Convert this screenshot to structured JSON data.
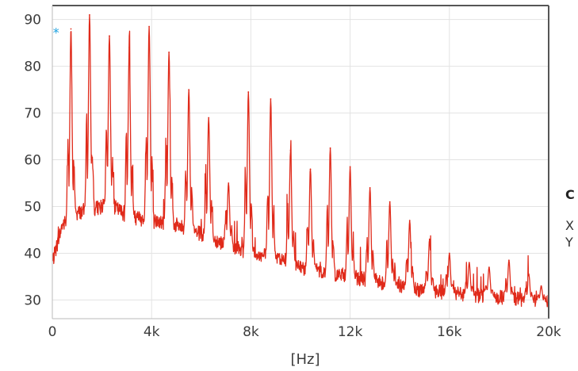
{
  "chart_data": {
    "type": "line",
    "title": "",
    "xlabel": "[Hz]",
    "ylabel": "",
    "xlim": [
      0,
      20000
    ],
    "ylim": [
      26,
      93
    ],
    "x_ticks": [
      0,
      4000,
      8000,
      12000,
      16000,
      20000
    ],
    "x_tick_labels": [
      "0",
      "4k",
      "8k",
      "12k",
      "16k",
      "20k"
    ],
    "y_ticks": [
      30,
      40,
      50,
      60,
      70,
      80,
      90
    ],
    "y_tick_labels": [
      "30",
      "40",
      "50",
      "60",
      "70",
      "80",
      "90"
    ],
    "grid": true,
    "marker": {
      "label": "*",
      "x": 150,
      "y": 88,
      "color": "#1aa0e0"
    },
    "cursor_panel": {
      "heading": "C",
      "x_label": "X",
      "y_label": "Y"
    },
    "series": [
      {
        "color": "#e02a1a",
        "baseline": [
          [
            0,
            38
          ],
          [
            400,
            46
          ],
          [
            800,
            48
          ],
          [
            1200,
            49
          ],
          [
            2000,
            50
          ],
          [
            2500,
            50
          ],
          [
            3000,
            48
          ],
          [
            4000,
            47
          ],
          [
            5000,
            46
          ],
          [
            6000,
            44
          ],
          [
            7000,
            42
          ],
          [
            8000,
            40
          ],
          [
            9000,
            39
          ],
          [
            10000,
            37
          ],
          [
            11000,
            36
          ],
          [
            12000,
            35
          ],
          [
            13000,
            34
          ],
          [
            14000,
            33
          ],
          [
            15000,
            32
          ],
          [
            16000,
            31.5
          ],
          [
            17000,
            31
          ],
          [
            18000,
            30.5
          ],
          [
            19000,
            30
          ],
          [
            20000,
            29.5
          ]
        ],
        "peaks": [
          [
            750,
            88
          ],
          [
            1500,
            91
          ],
          [
            2300,
            86.5
          ],
          [
            3100,
            84
          ],
          [
            3900,
            88.5
          ],
          [
            4700,
            83
          ],
          [
            5500,
            75
          ],
          [
            6300,
            69
          ],
          [
            7100,
            55
          ],
          [
            7900,
            74.5
          ],
          [
            8800,
            73
          ],
          [
            9600,
            62
          ],
          [
            10400,
            58
          ],
          [
            11200,
            62.5
          ],
          [
            12000,
            58.5
          ],
          [
            12800,
            54
          ],
          [
            13600,
            51
          ],
          [
            14400,
            47
          ],
          [
            15200,
            43
          ],
          [
            16000,
            40
          ],
          [
            16800,
            38
          ],
          [
            17600,
            37
          ],
          [
            18400,
            38.5
          ],
          [
            19200,
            35.5
          ],
          [
            19700,
            33
          ]
        ]
      }
    ]
  }
}
